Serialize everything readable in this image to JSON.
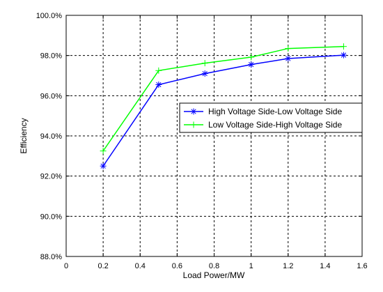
{
  "chart_data": {
    "type": "line",
    "xlabel": "Load Power/MW",
    "ylabel": "Efficiency",
    "xlim": [
      0,
      1.6
    ],
    "ylim": [
      88.0,
      100.0
    ],
    "xticks": [
      0,
      0.2,
      0.4,
      0.6,
      0.8,
      1,
      1.2,
      1.4,
      1.6
    ],
    "xtick_labels": [
      "0",
      "0.2",
      "0.4",
      "0.6",
      "0.8",
      "1",
      "1.2",
      "1.4",
      "1.6"
    ],
    "yticks": [
      88.0,
      90.0,
      92.0,
      94.0,
      96.0,
      98.0,
      100.0
    ],
    "ytick_labels": [
      "88.0%",
      "90.0%",
      "92.0%",
      "94.0%",
      "96.0%",
      "98.0%",
      "100.0%"
    ],
    "grid": true,
    "grid_style": "dashed",
    "legend_position": "center-right",
    "series": [
      {
        "name": "High Voltage Side-Low Voltage Side",
        "color": "#0000ff",
        "marker": "asterisk",
        "x": [
          0.2,
          0.5,
          0.75,
          1.0,
          1.2,
          1.5
        ],
        "y": [
          92.5,
          96.55,
          97.1,
          97.55,
          97.85,
          98.02
        ]
      },
      {
        "name": "Low Voltage Side-High Voltage Side",
        "color": "#00ff00",
        "marker": "plus",
        "x": [
          0.2,
          0.5,
          0.75,
          1.0,
          1.2,
          1.5
        ],
        "y": [
          93.25,
          97.25,
          97.62,
          97.92,
          98.35,
          98.45
        ]
      }
    ]
  }
}
